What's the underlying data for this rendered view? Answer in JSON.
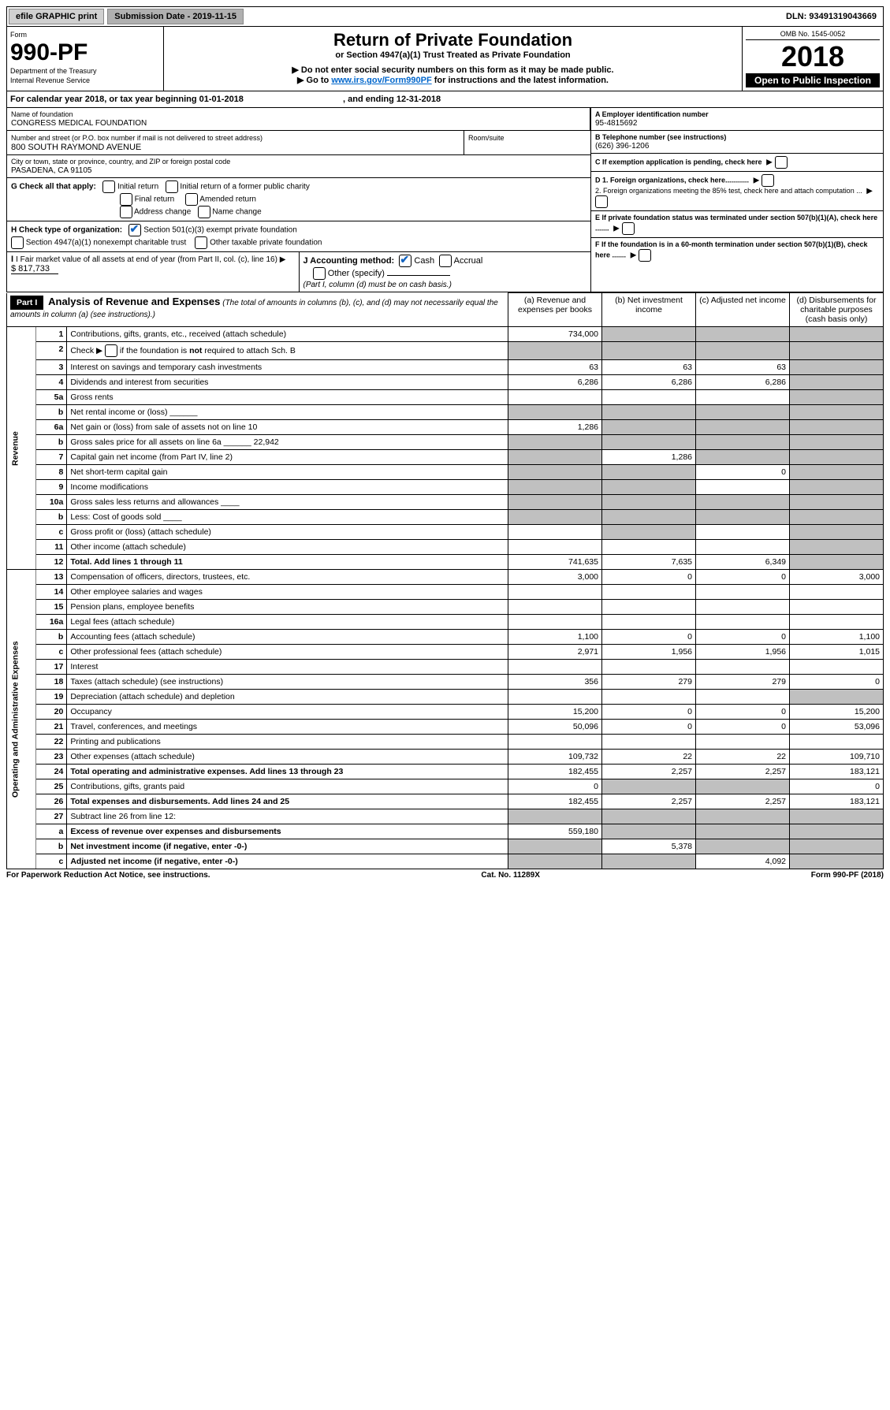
{
  "topbar": {
    "efile": "efile GRAPHIC print",
    "sub_label": "Submission Date - 2019-11-15",
    "dln": "DLN: 93491319043669"
  },
  "header": {
    "form_word": "Form",
    "form_num": "990-PF",
    "dept": "Department of the Treasury",
    "irs": "Internal Revenue Service",
    "title": "Return of Private Foundation",
    "subtitle": "or Section 4947(a)(1) Trust Treated as Private Foundation",
    "warn": "▶ Do not enter social security numbers on this form as it may be made public.",
    "goto_pre": "▶ Go to ",
    "goto_link": "www.irs.gov/Form990PF",
    "goto_post": " for instructions and the latest information.",
    "omb": "OMB No. 1545-0052",
    "year": "2018",
    "open": "Open to Public Inspection"
  },
  "cal": {
    "text_a": "For calendar year 2018, or tax year beginning 01-01-2018",
    "text_b": ", and ending 12-31-2018"
  },
  "info": {
    "name_label": "Name of foundation",
    "name": "CONGRESS MEDICAL FOUNDATION",
    "addr_label": "Number and street (or P.O. box number if mail is not delivered to street address)",
    "addr": "800 SOUTH RAYMOND AVENUE",
    "room_label": "Room/suite",
    "city_label": "City or town, state or province, country, and ZIP or foreign postal code",
    "city": "PASADENA, CA  91105",
    "a_label": "A Employer identification number",
    "a_val": "95-4815692",
    "b_label": "B Telephone number (see instructions)",
    "b_val": "(626) 396-1206",
    "c_label": "C If exemption application is pending, check here",
    "d1": "D 1. Foreign organizations, check here............",
    "d2": "2. Foreign organizations meeting the 85% test, check here and attach computation ...",
    "e_label": "E  If private foundation status was terminated under section 507(b)(1)(A), check here .......",
    "f_label": "F  If the foundation is in a 60-month termination under section 507(b)(1)(B), check here .......",
    "g_label": "G Check all that apply:",
    "g_opts": [
      "Initial return",
      "Initial return of a former public charity",
      "Final return",
      "Amended return",
      "Address change",
      "Name change"
    ],
    "h_label": "H Check type of organization:",
    "h1": "Section 501(c)(3) exempt private foundation",
    "h2": "Section 4947(a)(1) nonexempt charitable trust",
    "h3": "Other taxable private foundation",
    "i_label": "I Fair market value of all assets at end of year (from Part II, col. (c), line 16) ▶",
    "i_val": "$  817,733",
    "j_label": "J Accounting method:",
    "j_cash": "Cash",
    "j_accr": "Accrual",
    "j_other": "Other (specify)",
    "j_note": "(Part I, column (d) must be on cash basis.)"
  },
  "part1": {
    "label": "Part I",
    "title": "Analysis of Revenue and Expenses",
    "title_note": "(The total of amounts in columns (b), (c), and (d) may not necessarily equal the amounts in column (a) (see instructions).)",
    "cols": {
      "a": "(a)   Revenue and expenses per books",
      "b": "(b)  Net investment income",
      "c": "(c)  Adjusted net income",
      "d": "(d)  Disbursements for charitable purposes (cash basis only)"
    }
  },
  "side": {
    "rev": "Revenue",
    "exp": "Operating and Administrative Expenses"
  },
  "rows": [
    {
      "n": "1",
      "desc": "Contributions, gifts, grants, etc., received (attach schedule)",
      "a": "734,000",
      "b": "",
      "c": "",
      "d": "",
      "shadeB": true,
      "shadeC": true,
      "shadeD": true
    },
    {
      "n": "2",
      "desc": "Check ▶ ☐ if the foundation is not required to attach Sch. B",
      "a": "",
      "b": "",
      "c": "",
      "d": "",
      "shadeA": true,
      "shadeB": true,
      "shadeC": true,
      "shadeD": true,
      "raw": true
    },
    {
      "n": "3",
      "desc": "Interest on savings and temporary cash investments",
      "a": "63",
      "b": "63",
      "c": "63",
      "d": "",
      "shadeD": true
    },
    {
      "n": "4",
      "desc": "Dividends and interest from securities",
      "a": "6,286",
      "b": "6,286",
      "c": "6,286",
      "d": "",
      "shadeD": true
    },
    {
      "n": "5a",
      "desc": "Gross rents",
      "a": "",
      "b": "",
      "c": "",
      "d": "",
      "shadeD": true
    },
    {
      "n": "b",
      "desc": "Net rental income or (loss)  ______",
      "a": "",
      "b": "",
      "c": "",
      "d": "",
      "shadeA": true,
      "shadeB": true,
      "shadeC": true,
      "shadeD": true
    },
    {
      "n": "6a",
      "desc": "Net gain or (loss) from sale of assets not on line 10",
      "a": "1,286",
      "b": "",
      "c": "",
      "d": "",
      "shadeB": true,
      "shadeC": true,
      "shadeD": true
    },
    {
      "n": "b",
      "desc": "Gross sales price for all assets on line 6a ______ 22,942",
      "a": "",
      "b": "",
      "c": "",
      "d": "",
      "shadeA": true,
      "shadeB": true,
      "shadeC": true,
      "shadeD": true
    },
    {
      "n": "7",
      "desc": "Capital gain net income (from Part IV, line 2)",
      "a": "",
      "b": "1,286",
      "c": "",
      "d": "",
      "shadeA": true,
      "shadeC": true,
      "shadeD": true
    },
    {
      "n": "8",
      "desc": "Net short-term capital gain",
      "a": "",
      "b": "",
      "c": "0",
      "d": "",
      "shadeA": true,
      "shadeB": true,
      "shadeD": true
    },
    {
      "n": "9",
      "desc": "Income modifications",
      "a": "",
      "b": "",
      "c": "",
      "d": "",
      "shadeA": true,
      "shadeB": true,
      "shadeD": true
    },
    {
      "n": "10a",
      "desc": "Gross sales less returns and allowances  ____",
      "a": "",
      "b": "",
      "c": "",
      "d": "",
      "shadeA": true,
      "shadeB": true,
      "shadeC": true,
      "shadeD": true
    },
    {
      "n": "b",
      "desc": "Less: Cost of goods sold   ____",
      "a": "",
      "b": "",
      "c": "",
      "d": "",
      "shadeA": true,
      "shadeB": true,
      "shadeC": true,
      "shadeD": true
    },
    {
      "n": "c",
      "desc": "Gross profit or (loss) (attach schedule)",
      "a": "",
      "b": "",
      "c": "",
      "d": "",
      "shadeB": true,
      "shadeD": true
    },
    {
      "n": "11",
      "desc": "Other income (attach schedule)",
      "a": "",
      "b": "",
      "c": "",
      "d": "",
      "shadeD": true
    },
    {
      "n": "12",
      "desc": "Total. Add lines 1 through 11",
      "a": "741,635",
      "b": "7,635",
      "c": "6,349",
      "d": "",
      "bold": true,
      "shadeD": true
    }
  ],
  "exp_rows": [
    {
      "n": "13",
      "desc": "Compensation of officers, directors, trustees, etc.",
      "a": "3,000",
      "b": "0",
      "c": "0",
      "d": "3,000"
    },
    {
      "n": "14",
      "desc": "Other employee salaries and wages",
      "a": "",
      "b": "",
      "c": "",
      "d": ""
    },
    {
      "n": "15",
      "desc": "Pension plans, employee benefits",
      "a": "",
      "b": "",
      "c": "",
      "d": ""
    },
    {
      "n": "16a",
      "desc": "Legal fees (attach schedule)",
      "a": "",
      "b": "",
      "c": "",
      "d": ""
    },
    {
      "n": "b",
      "desc": "Accounting fees (attach schedule)",
      "a": "1,100",
      "b": "0",
      "c": "0",
      "d": "1,100"
    },
    {
      "n": "c",
      "desc": "Other professional fees (attach schedule)",
      "a": "2,971",
      "b": "1,956",
      "c": "1,956",
      "d": "1,015"
    },
    {
      "n": "17",
      "desc": "Interest",
      "a": "",
      "b": "",
      "c": "",
      "d": ""
    },
    {
      "n": "18",
      "desc": "Taxes (attach schedule) (see instructions)",
      "a": "356",
      "b": "279",
      "c": "279",
      "d": "0"
    },
    {
      "n": "19",
      "desc": "Depreciation (attach schedule) and depletion",
      "a": "",
      "b": "",
      "c": "",
      "d": "",
      "shadeD": true
    },
    {
      "n": "20",
      "desc": "Occupancy",
      "a": "15,200",
      "b": "0",
      "c": "0",
      "d": "15,200"
    },
    {
      "n": "21",
      "desc": "Travel, conferences, and meetings",
      "a": "50,096",
      "b": "0",
      "c": "0",
      "d": "53,096"
    },
    {
      "n": "22",
      "desc": "Printing and publications",
      "a": "",
      "b": "",
      "c": "",
      "d": ""
    },
    {
      "n": "23",
      "desc": "Other expenses (attach schedule)",
      "a": "109,732",
      "b": "22",
      "c": "22",
      "d": "109,710"
    },
    {
      "n": "24",
      "desc": "Total operating and administrative expenses. Add lines 13 through 23",
      "a": "182,455",
      "b": "2,257",
      "c": "2,257",
      "d": "183,121",
      "bold": true
    },
    {
      "n": "25",
      "desc": "Contributions, gifts, grants paid",
      "a": "0",
      "b": "",
      "c": "",
      "d": "0",
      "shadeB": true,
      "shadeC": true
    },
    {
      "n": "26",
      "desc": "Total expenses and disbursements. Add lines 24 and 25",
      "a": "182,455",
      "b": "2,257",
      "c": "2,257",
      "d": "183,121",
      "bold": true
    },
    {
      "n": "27",
      "desc": "Subtract line 26 from line 12:",
      "a": "",
      "b": "",
      "c": "",
      "d": "",
      "shadeA": true,
      "shadeB": true,
      "shadeC": true,
      "shadeD": true
    },
    {
      "n": "a",
      "desc": "Excess of revenue over expenses and disbursements",
      "a": "559,180",
      "b": "",
      "c": "",
      "d": "",
      "bold": true,
      "shadeB": true,
      "shadeC": true,
      "shadeD": true
    },
    {
      "n": "b",
      "desc": "Net investment income (if negative, enter -0-)",
      "a": "",
      "b": "5,378",
      "c": "",
      "d": "",
      "bold": true,
      "shadeA": true,
      "shadeC": true,
      "shadeD": true
    },
    {
      "n": "c",
      "desc": "Adjusted net income (if negative, enter -0-)",
      "a": "",
      "b": "",
      "c": "4,092",
      "d": "",
      "bold": true,
      "shadeA": true,
      "shadeB": true,
      "shadeD": true
    }
  ],
  "footer": {
    "left": "For Paperwork Reduction Act Notice, see instructions.",
    "mid": "Cat. No. 11289X",
    "right": "Form 990-PF (2018)"
  }
}
